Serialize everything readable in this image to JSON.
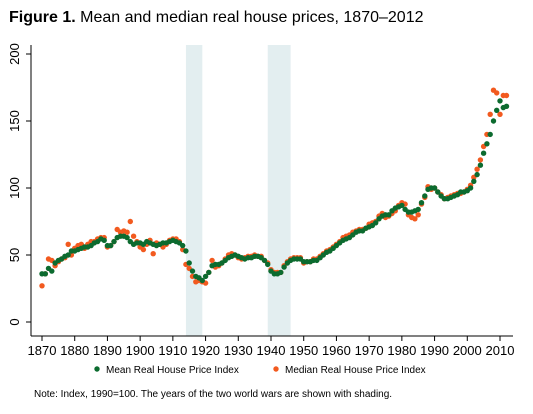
{
  "figure": {
    "label": "Figure 1.",
    "title": "Mean and median real house prices, 1870–2012"
  },
  "note": "Note: Index, 1990=100. The years of the two world wars are shown with shading.",
  "chart_data": {
    "type": "scatter",
    "title": "Mean and median real house prices, 1870–2012",
    "xlabel": "",
    "ylabel": "",
    "xlim": [
      1868,
      2013
    ],
    "ylim": [
      0,
      200
    ],
    "xticks": [
      1870,
      1880,
      1890,
      1900,
      1910,
      1920,
      1930,
      1940,
      1950,
      1960,
      1970,
      1980,
      1990,
      2000,
      2010
    ],
    "yticks": [
      0,
      50,
      100,
      150,
      200
    ],
    "grid": false,
    "legend": "bottom",
    "shaded_periods": [
      [
        1914,
        1919
      ],
      [
        1939,
        1946
      ]
    ],
    "colors": {
      "mean": "#0c6b2f",
      "median": "#f25a1f",
      "shading": "#e3eef0",
      "axis": "#000000"
    },
    "series": [
      {
        "name": "Mean Real House Price Index",
        "color": "#0c6b2f",
        "x": [
          1870,
          1871,
          1872,
          1873,
          1874,
          1875,
          1876,
          1877,
          1878,
          1879,
          1880,
          1881,
          1882,
          1883,
          1884,
          1885,
          1886,
          1887,
          1888,
          1889,
          1890,
          1891,
          1892,
          1893,
          1894,
          1895,
          1896,
          1897,
          1898,
          1899,
          1900,
          1901,
          1902,
          1903,
          1904,
          1905,
          1906,
          1907,
          1908,
          1909,
          1910,
          1911,
          1912,
          1913,
          1914,
          1915,
          1916,
          1917,
          1918,
          1919,
          1920,
          1921,
          1922,
          1923,
          1924,
          1925,
          1926,
          1927,
          1928,
          1929,
          1930,
          1931,
          1932,
          1933,
          1934,
          1935,
          1936,
          1937,
          1938,
          1939,
          1940,
          1941,
          1942,
          1943,
          1944,
          1945,
          1946,
          1947,
          1948,
          1949,
          1950,
          1951,
          1952,
          1953,
          1954,
          1955,
          1956,
          1957,
          1958,
          1959,
          1960,
          1961,
          1962,
          1963,
          1964,
          1965,
          1966,
          1967,
          1968,
          1969,
          1970,
          1971,
          1972,
          1973,
          1974,
          1975,
          1976,
          1977,
          1978,
          1979,
          1980,
          1981,
          1982,
          1983,
          1984,
          1985,
          1986,
          1987,
          1988,
          1989,
          1990,
          1991,
          1992,
          1993,
          1994,
          1995,
          1996,
          1997,
          1998,
          1999,
          2000,
          2001,
          2002,
          2003,
          2004,
          2005,
          2006,
          2007,
          2008,
          2009,
          2010,
          2011,
          2012
        ],
        "y": [
          36,
          36,
          40,
          38,
          44,
          46,
          47,
          49,
          50,
          53,
          53,
          54,
          55,
          56,
          56,
          57,
          59,
          60,
          62,
          61,
          57,
          57,
          60,
          63,
          64,
          64,
          63,
          60,
          58,
          59,
          59,
          58,
          60,
          59,
          58,
          57,
          58,
          59,
          59,
          60,
          61,
          60,
          59,
          57,
          53,
          44,
          38,
          34,
          33,
          31,
          34,
          37,
          42,
          43,
          43,
          44,
          46,
          48,
          49,
          50,
          49,
          48,
          47,
          48,
          48,
          49,
          49,
          48,
          46,
          43,
          38,
          36,
          36,
          37,
          41,
          44,
          46,
          47,
          47,
          47,
          45,
          45,
          45,
          46,
          46,
          48,
          50,
          52,
          53,
          55,
          57,
          59,
          61,
          62,
          63,
          65,
          67,
          68,
          68,
          70,
          71,
          72,
          74,
          77,
          79,
          80,
          80,
          83,
          85,
          86,
          87,
          84,
          82,
          82,
          83,
          84,
          89,
          94,
          99,
          100,
          100,
          97,
          94,
          92,
          92,
          93,
          94,
          95,
          97,
          97,
          98,
          100,
          105,
          110,
          117,
          126,
          133,
          140,
          150,
          158,
          165,
          160,
          161
        ]
      },
      {
        "name": "Median Real House Price Index",
        "color": "#f25a1f",
        "x": [
          1870,
          1871,
          1872,
          1873,
          1874,
          1875,
          1876,
          1877,
          1878,
          1879,
          1880,
          1881,
          1882,
          1883,
          1884,
          1885,
          1886,
          1887,
          1888,
          1889,
          1890,
          1891,
          1892,
          1893,
          1894,
          1895,
          1896,
          1897,
          1898,
          1899,
          1900,
          1901,
          1902,
          1903,
          1904,
          1905,
          1906,
          1907,
          1908,
          1909,
          1910,
          1911,
          1912,
          1913,
          1914,
          1915,
          1916,
          1917,
          1918,
          1919,
          1920,
          1921,
          1922,
          1923,
          1924,
          1925,
          1926,
          1927,
          1928,
          1929,
          1930,
          1931,
          1932,
          1933,
          1934,
          1935,
          1936,
          1937,
          1938,
          1939,
          1940,
          1941,
          1942,
          1943,
          1944,
          1945,
          1946,
          1947,
          1948,
          1949,
          1950,
          1951,
          1952,
          1953,
          1954,
          1955,
          1956,
          1957,
          1958,
          1959,
          1960,
          1961,
          1962,
          1963,
          1964,
          1965,
          1966,
          1967,
          1968,
          1969,
          1970,
          1971,
          1972,
          1973,
          1974,
          1975,
          1976,
          1977,
          1978,
          1979,
          1980,
          1981,
          1982,
          1983,
          1984,
          1985,
          1986,
          1987,
          1988,
          1989,
          1990,
          1991,
          1992,
          1993,
          1994,
          1995,
          1996,
          1997,
          1998,
          1999,
          2000,
          2001,
          2002,
          2003,
          2004,
          2005,
          2006,
          2007,
          2008,
          2009,
          2010,
          2011,
          2012
        ],
        "y": [
          27,
          36,
          47,
          46,
          42,
          45,
          47,
          48,
          58,
          50,
          55,
          57,
          58,
          55,
          58,
          60,
          60,
          62,
          63,
          63,
          56,
          57,
          60,
          69,
          67,
          68,
          67,
          75,
          64,
          60,
          56,
          54,
          58,
          61,
          51,
          59,
          58,
          56,
          58,
          61,
          62,
          62,
          60,
          54,
          43,
          40,
          34,
          30,
          31,
          30,
          29,
          37,
          46,
          41,
          42,
          44,
          47,
          50,
          51,
          50,
          48,
          47,
          48,
          49,
          49,
          50,
          49,
          49,
          46,
          44,
          39,
          37,
          37,
          37,
          42,
          45,
          47,
          48,
          48,
          48,
          44,
          45,
          45,
          47,
          47,
          49,
          51,
          53,
          54,
          56,
          58,
          60,
          63,
          64,
          65,
          67,
          68,
          69,
          69,
          70,
          73,
          74,
          75,
          79,
          81,
          78,
          79,
          81,
          83,
          87,
          89,
          88,
          80,
          78,
          77,
          80,
          88,
          93,
          101,
          99,
          100,
          97,
          95,
          92,
          93,
          94,
          95,
          96,
          96,
          97,
          99,
          102,
          108,
          114,
          121,
          131,
          140,
          155,
          173,
          171,
          155,
          169,
          169
        ]
      }
    ]
  }
}
